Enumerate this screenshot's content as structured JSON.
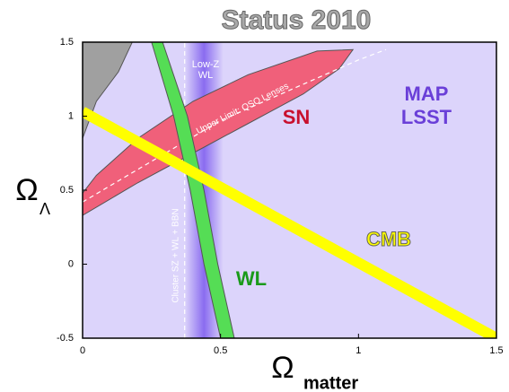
{
  "chart_data": {
    "type": "contour",
    "title": "Status 2010",
    "x_label": "Ω",
    "x_label_sub": "matter",
    "y_label": "Ω",
    "y_label_sub": "Λ",
    "xlim": [
      0,
      1.5
    ],
    "ylim": [
      -0.5,
      1.5
    ],
    "xticks": [
      0,
      0.5,
      1,
      1.5
    ],
    "yticks": [
      -0.5,
      0,
      0.5,
      1,
      1.5
    ],
    "background": "#dcd4fb",
    "annotations": [
      "MAP LSST"
    ],
    "series": [
      {
        "kind": "region",
        "color": "#a0a0a0",
        "x": [
          0,
          0.05,
          0.13,
          0.18,
          0
        ],
        "values": [
          0.85,
          1.1,
          1.3,
          1.5,
          1.5
        ]
      },
      {
        "name": "Low-Z WL",
        "kind": "vband",
        "color": "#8a6cf0",
        "x": [
          0.37,
          0.51
        ]
      },
      {
        "name": "SN",
        "kind": "region",
        "color": "#f0607a",
        "x": [
          0,
          0.2,
          0.4,
          0.6,
          0.8,
          0.93,
          0.98,
          0.85,
          0.6,
          0.4,
          0.2,
          0.05,
          0
        ],
        "values": [
          0.33,
          0.55,
          0.75,
          0.95,
          1.15,
          1.32,
          1.45,
          1.44,
          1.28,
          1.1,
          0.85,
          0.6,
          0.48
        ]
      },
      {
        "name": "Upper Limit: QSO Lenses",
        "kind": "dashed",
        "color": "#ffffff",
        "x": [
          0,
          0.5,
          1,
          1.1
        ],
        "values": [
          0.42,
          0.97,
          1.38,
          1.45
        ]
      },
      {
        "name": "Cluster SZ + WL + BBN",
        "kind": "dashed",
        "color": "#ffffff",
        "x": [
          0.37,
          0.37
        ],
        "values": [
          -0.5,
          1.5
        ]
      },
      {
        "name": "WL",
        "kind": "region",
        "color": "#55dd55",
        "x": [
          0.25,
          0.33,
          0.39,
          0.44,
          0.5,
          0.55,
          0.49,
          0.44,
          0.38,
          0.29
        ],
        "values": [
          1.5,
          1.0,
          0.5,
          0,
          -0.5,
          -0.5,
          0,
          0.5,
          1.0,
          1.5
        ]
      },
      {
        "name": "CMB",
        "kind": "line",
        "color": "#ffff00",
        "x": [
          0,
          1.5
        ],
        "values": [
          1.03,
          -0.5
        ]
      }
    ]
  }
}
